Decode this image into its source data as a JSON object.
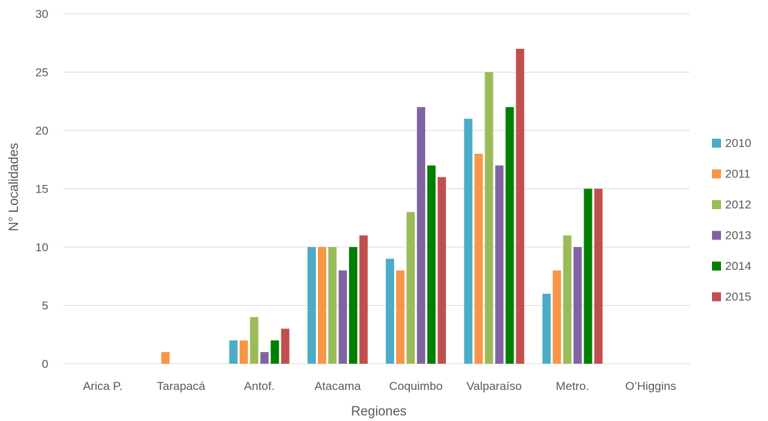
{
  "chart_data": {
    "type": "bar",
    "title": "",
    "xlabel": "Regiones",
    "ylabel": "N° Localidades",
    "ylim": [
      0,
      30
    ],
    "yticks": [
      0,
      5,
      10,
      15,
      20,
      25,
      30
    ],
    "grid": true,
    "legend_position": "right",
    "categories": [
      "Arica P.",
      "Tarapacá",
      "Antof.",
      "Atacama",
      "Coquimbo",
      "Valparaíso",
      "Metro.",
      "O’Higgins"
    ],
    "series": [
      {
        "name": "2010",
        "color": "#4BACC6",
        "values": [
          0,
          0,
          2,
          10,
          9,
          21,
          6,
          0
        ]
      },
      {
        "name": "2011",
        "color": "#F79646",
        "values": [
          0,
          1,
          2,
          10,
          8,
          18,
          8,
          0
        ]
      },
      {
        "name": "2012",
        "color": "#9BBB59",
        "values": [
          0,
          0,
          4,
          10,
          13,
          25,
          11,
          0
        ]
      },
      {
        "name": "2013",
        "color": "#8064A2",
        "values": [
          0,
          0,
          1,
          8,
          22,
          17,
          10,
          0
        ]
      },
      {
        "name": "2014",
        "color": "#008000",
        "values": [
          0,
          0,
          2,
          10,
          17,
          22,
          15,
          0
        ]
      },
      {
        "name": "2015",
        "color": "#C0504D",
        "values": [
          0,
          0,
          3,
          11,
          16,
          27,
          15,
          0
        ]
      }
    ]
  }
}
